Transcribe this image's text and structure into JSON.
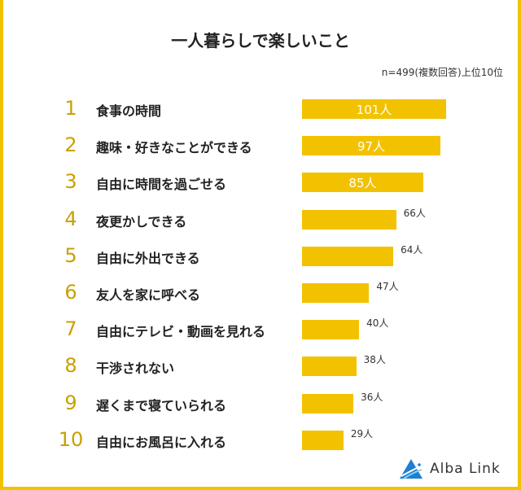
{
  "chart_data": {
    "type": "bar",
    "orientation": "horizontal",
    "title": "一人暮らしで楽しいこと",
    "note": "n=499(複数回答)上位10位",
    "unit": "人",
    "categories": [
      "食事の時間",
      "趣味・好きなことができる",
      "自由に時間を過ごせる",
      "夜更かしできる",
      "自由に外出できる",
      "友人を家に呼べる",
      "自由にテレビ・動画を見れる",
      "干渉されない",
      "遅くまで寝ていられる",
      "自由にお風呂に入れる"
    ],
    "ranks": [
      "1",
      "2",
      "3",
      "4",
      "5",
      "6",
      "7",
      "8",
      "9",
      "10"
    ],
    "values": [
      101,
      97,
      85,
      66,
      64,
      47,
      40,
      38,
      36,
      29
    ],
    "value_labels": [
      "101人",
      "97人",
      "85人",
      "66人",
      "64人",
      "47人",
      "40人",
      "38人",
      "36人",
      "29人"
    ],
    "bar_color": "#f2c200",
    "rank_color": "#c9a000"
  },
  "brand": {
    "name": "Alba Link"
  }
}
